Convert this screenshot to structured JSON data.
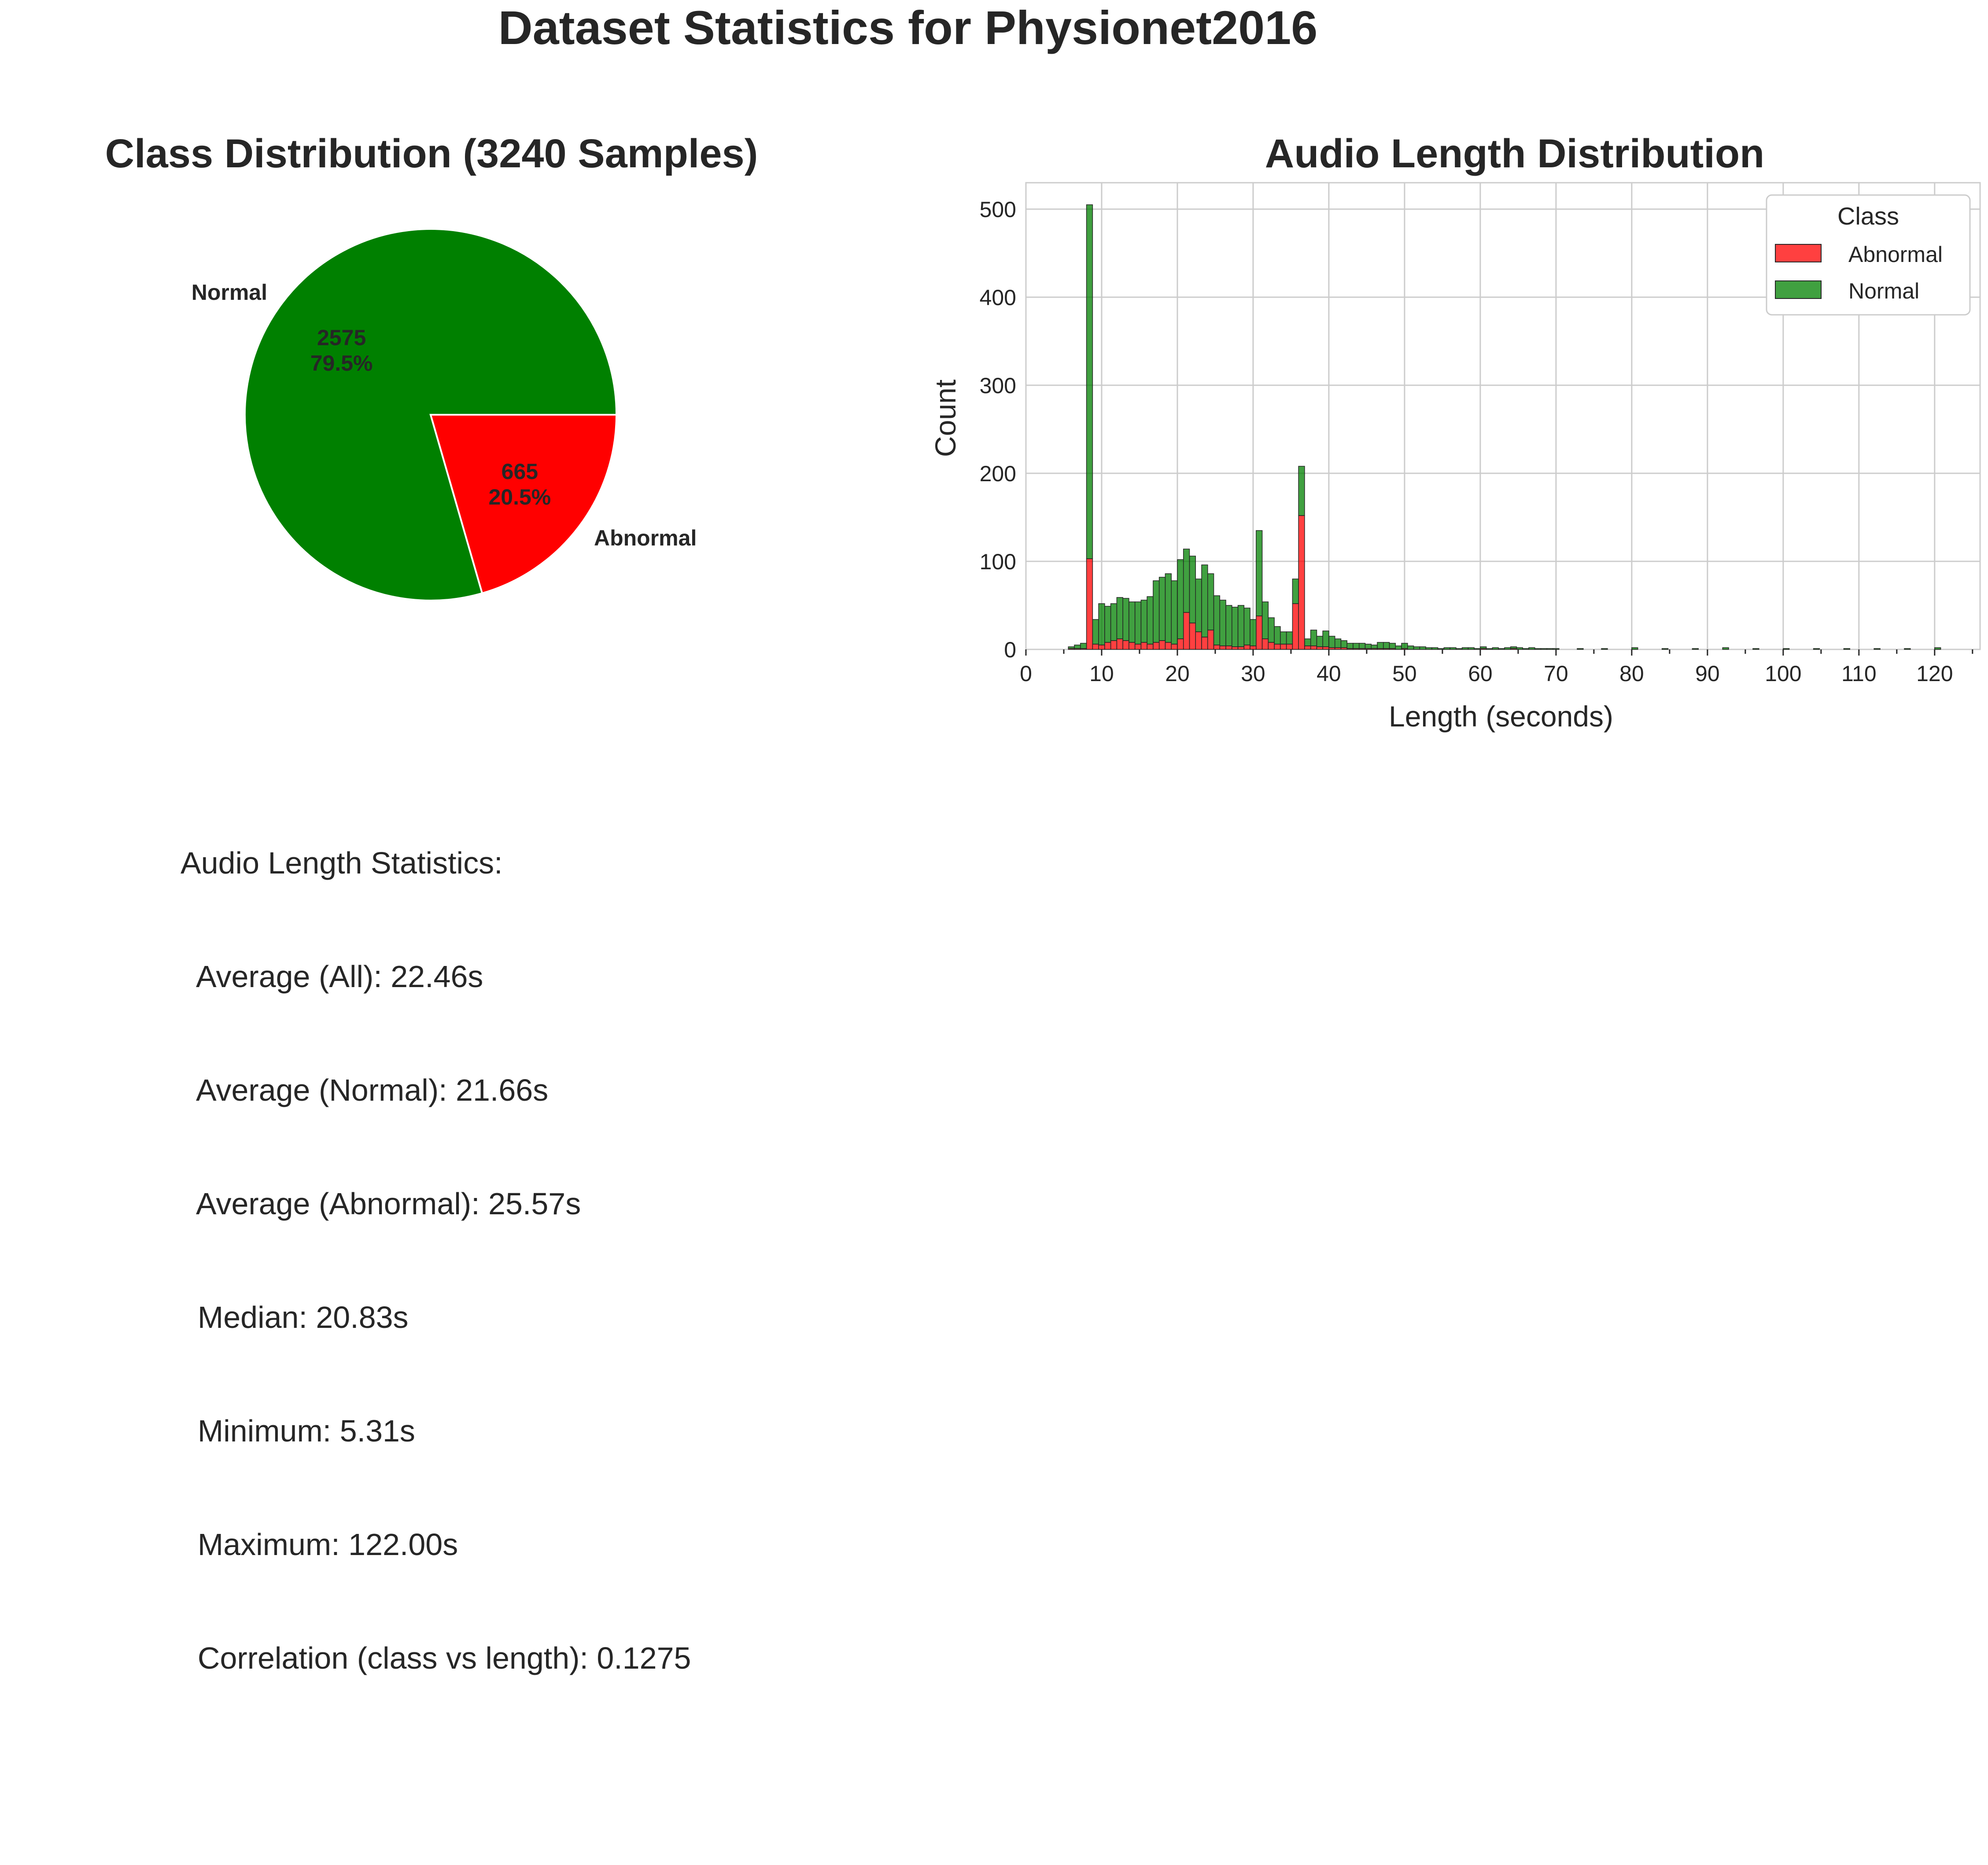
{
  "figure": {
    "title": "Dataset Statistics for Physionet2016"
  },
  "chart_data": [
    {
      "type": "pie",
      "title": "Class Distribution (3240 Samples)",
      "slices": [
        {
          "label": "Normal",
          "value": 2575,
          "percent": "79.5%",
          "color": "#008000"
        },
        {
          "label": "Abnormal",
          "value": 665,
          "percent": "20.5%",
          "color": "#ff0000"
        }
      ]
    },
    {
      "type": "bar",
      "subtype": "stacked-histogram",
      "title": "Audio Length Distribution",
      "xlabel": "Length (seconds)",
      "ylabel": "Count",
      "xlim": [
        0,
        126
      ],
      "ylim": [
        0,
        530
      ],
      "xticks": [
        0,
        10,
        20,
        30,
        40,
        50,
        60,
        70,
        80,
        90,
        100,
        110,
        120
      ],
      "yticks": [
        0,
        100,
        200,
        300,
        400,
        500
      ],
      "grid": true,
      "legend": {
        "title": "Class",
        "position": "top-right"
      },
      "bin_width": 0.8,
      "series": [
        {
          "name": "Abnormal",
          "color": "#ff0000",
          "x": [
            5.6,
            6.4,
            7.2,
            8.0,
            8.8,
            9.6,
            10.4,
            11.2,
            12.0,
            12.8,
            13.6,
            14.4,
            15.2,
            16.0,
            16.8,
            17.6,
            18.4,
            19.2,
            20.0,
            20.8,
            21.6,
            22.4,
            23.2,
            24.0,
            24.8,
            25.6,
            26.4,
            27.2,
            28.0,
            28.8,
            29.6,
            30.4,
            31.2,
            32.0,
            32.8,
            33.6,
            34.4,
            35.2,
            36.0,
            36.8,
            37.6,
            38.4,
            39.2,
            40.0,
            40.8,
            41.6,
            42.4,
            43.2,
            44.0,
            44.8,
            45.6,
            46.4,
            47.2,
            48.0,
            48.8,
            49.6,
            50.4,
            51.2,
            52.0,
            52.8,
            53.6,
            54.4,
            55.2,
            56.0,
            56.8,
            57.6,
            58.4,
            59.2,
            60.0,
            60.8,
            61.6,
            62.4,
            63.2,
            64.0,
            64.8,
            65.6,
            66.4,
            67.2,
            68.0,
            68.8,
            69.6,
            72.8,
            76.0,
            80.0,
            84.0,
            88.0,
            92.0,
            96.0,
            100.0,
            104.0,
            108.0,
            112.0,
            116.0,
            120.0
          ],
          "values": [
            1,
            1,
            1,
            103,
            6,
            5,
            8,
            10,
            12,
            10,
            8,
            6,
            8,
            6,
            8,
            10,
            8,
            6,
            12,
            42,
            30,
            20,
            14,
            22,
            5,
            4,
            4,
            3,
            3,
            5,
            4,
            38,
            12,
            8,
            6,
            6,
            6,
            52,
            152,
            4,
            4,
            3,
            3,
            2,
            2,
            2,
            1,
            1,
            1,
            1,
            1,
            1,
            1,
            1,
            0,
            1,
            0,
            0,
            0,
            0,
            0,
            0,
            0,
            0,
            0,
            0,
            0,
            0,
            1,
            0,
            0,
            0,
            0,
            1,
            0,
            0,
            0,
            0,
            0,
            0,
            0,
            0,
            0,
            0,
            0,
            0,
            0,
            0,
            0,
            0,
            0,
            0,
            0,
            0
          ]
        },
        {
          "name": "Normal",
          "color": "#008000",
          "x": [
            5.6,
            6.4,
            7.2,
            8.0,
            8.8,
            9.6,
            10.4,
            11.2,
            12.0,
            12.8,
            13.6,
            14.4,
            15.2,
            16.0,
            16.8,
            17.6,
            18.4,
            19.2,
            20.0,
            20.8,
            21.6,
            22.4,
            23.2,
            24.0,
            24.8,
            25.6,
            26.4,
            27.2,
            28.0,
            28.8,
            29.6,
            30.4,
            31.2,
            32.0,
            32.8,
            33.6,
            34.4,
            35.2,
            36.0,
            36.8,
            37.6,
            38.4,
            39.2,
            40.0,
            40.8,
            41.6,
            42.4,
            43.2,
            44.0,
            44.8,
            45.6,
            46.4,
            47.2,
            48.0,
            48.8,
            49.6,
            50.4,
            51.2,
            52.0,
            52.8,
            53.6,
            54.4,
            55.2,
            56.0,
            56.8,
            57.6,
            58.4,
            59.2,
            60.0,
            60.8,
            61.6,
            62.4,
            63.2,
            64.0,
            64.8,
            65.6,
            66.4,
            67.2,
            68.0,
            68.8,
            69.6,
            72.8,
            76.0,
            80.0,
            84.0,
            88.0,
            92.0,
            96.0,
            100.0,
            104.0,
            108.0,
            112.0,
            116.0,
            120.0
          ],
          "values": [
            2,
            4,
            6,
            402,
            28,
            47,
            41,
            42,
            47,
            48,
            46,
            48,
            48,
            54,
            70,
            72,
            78,
            72,
            90,
            72,
            76,
            60,
            82,
            64,
            56,
            52,
            46,
            45,
            47,
            42,
            30,
            97,
            42,
            28,
            20,
            14,
            14,
            28,
            56,
            8,
            18,
            12,
            18,
            13,
            10,
            8,
            6,
            6,
            6,
            5,
            4,
            7,
            7,
            6,
            4,
            6,
            4,
            3,
            3,
            2,
            2,
            1,
            2,
            2,
            1,
            2,
            2,
            1,
            2,
            1,
            2,
            1,
            2,
            2,
            2,
            1,
            2,
            1,
            1,
            1,
            1,
            1,
            1,
            2,
            1,
            1,
            2,
            1,
            1,
            1,
            1,
            1,
            1,
            2
          ]
        }
      ]
    }
  ],
  "stats": {
    "heading": "Audio Length Statistics:",
    "lines": [
      "  Average (All): 22.46s",
      "  Average (Normal): 21.66s",
      "  Average (Abnormal): 25.57s",
      "  Median: 20.83s",
      "  Minimum: 5.31s",
      "  Maximum: 122.00s",
      "  Correlation (class vs length): 0.1275"
    ]
  }
}
